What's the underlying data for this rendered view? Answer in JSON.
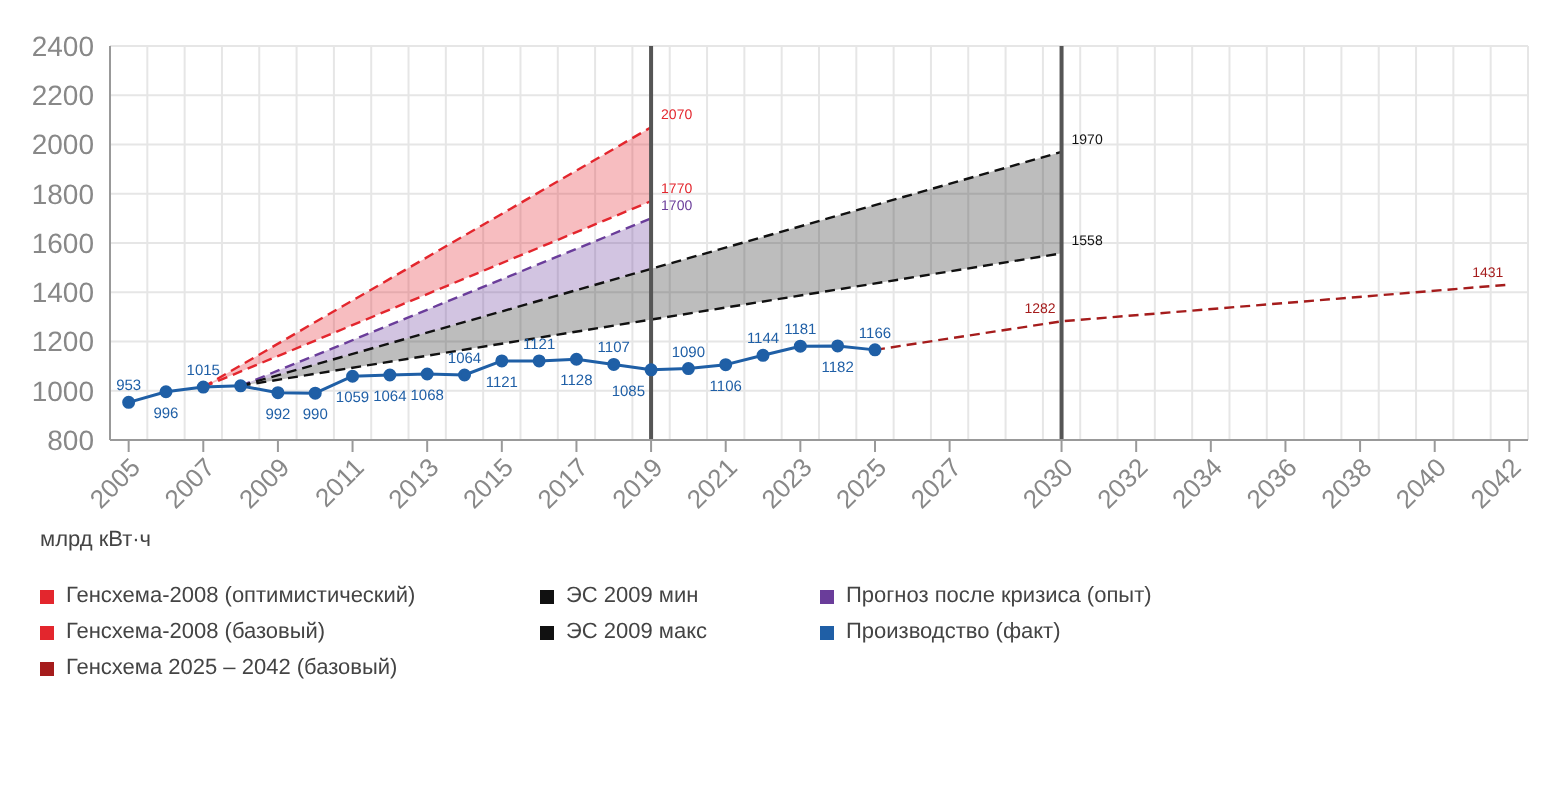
{
  "chart_data": {
    "type": "line",
    "ylabel": "млрд кВт·ч",
    "xlim": [
      2004.5,
      2042.5
    ],
    "xticks": [
      2005,
      2007,
      2009,
      2011,
      2013,
      2015,
      2017,
      2019,
      2021,
      2023,
      2025,
      2027,
      2030,
      2032,
      2034,
      2036,
      2038,
      2040,
      2042
    ],
    "ylim": [
      800,
      2400
    ],
    "yticks": [
      800,
      1000,
      1200,
      1400,
      1600,
      1800,
      2000,
      2200,
      2400
    ],
    "grid": true,
    "legend": "bottom",
    "ref_lines": [
      {
        "axis": "x",
        "value": 2019,
        "color": "#555555"
      },
      {
        "axis": "x",
        "value": 2030,
        "color": "#555555"
      }
    ],
    "series": [
      {
        "name": "Генсхема-2008 (оптимистический)",
        "color": "#e3262d",
        "line_style": "dashed",
        "marker": "none",
        "x": [
          2007,
          2019
        ],
        "values": [
          1015,
          2070
        ],
        "lower": [
          1015,
          1770
        ],
        "upper": [
          1015,
          2070
        ],
        "value_labels": [
          null,
          "2070"
        ]
      },
      {
        "name": "ЭС 2009 мин",
        "color": "#111111",
        "line_style": "dashed",
        "marker": "none",
        "x": [
          2008,
          2030
        ],
        "values": [
          1020,
          1558
        ],
        "value_labels": [
          null,
          "1558"
        ]
      },
      {
        "name": "Прогноз после кризиса (опыт)",
        "color": "#6a3d9a",
        "line_style": "dashed",
        "marker": "none",
        "x": [
          2008,
          2019
        ],
        "values": [
          1020,
          1700
        ],
        "lower": [
          1020,
          1495
        ],
        "upper": [
          1020,
          1700
        ],
        "value_labels": [
          null,
          "1700"
        ]
      },
      {
        "name": "Генсхема-2008 (базовый)",
        "color": "#e3262d",
        "line_style": "dashed",
        "marker": "none",
        "x": [
          2007,
          2019
        ],
        "values": [
          1015,
          1770
        ],
        "value_labels": [
          null,
          "1770"
        ]
      },
      {
        "name": "ЭС 2009 макс",
        "color": "#111111",
        "line_style": "dashed",
        "marker": "none",
        "x": [
          2008,
          2030
        ],
        "values": [
          1020,
          1970
        ],
        "lower": [
          1020,
          1558
        ],
        "upper": [
          1020,
          1970
        ],
        "value_labels": [
          null,
          "1970"
        ]
      },
      {
        "name": "Производство (факт)",
        "color": "#1f5fa6",
        "line_style": "solid",
        "marker": "circle",
        "x": [
          2005,
          2006,
          2007,
          2008,
          2009,
          2010,
          2011,
          2012,
          2013,
          2014,
          2015,
          2016,
          2017,
          2018,
          2019,
          2020,
          2021,
          2022,
          2023,
          2024,
          2025
        ],
        "values": [
          953,
          996,
          1015,
          1020,
          992,
          990,
          1059,
          1064,
          1068,
          1064,
          1121,
          1121,
          1128,
          1107,
          1085,
          1090,
          1106,
          1144,
          1181,
          1182,
          1166
        ],
        "value_labels": [
          "953",
          "996",
          "1015",
          null,
          "992",
          "990",
          "1059",
          "1064",
          "1068",
          "1064",
          "1121",
          "1121",
          "1128",
          "1107",
          "1085",
          "1090",
          "1106",
          "1144",
          "1181",
          "1182",
          "1166"
        ]
      },
      {
        "name": "Генсхема 2025 – 2042 (базовый)",
        "color": "#a51c1c",
        "line_style": "dashed",
        "marker": "none",
        "x": [
          2025,
          2030,
          2042
        ],
        "values": [
          1166,
          1282,
          1431
        ],
        "value_labels": [
          null,
          "1282",
          "1431"
        ]
      }
    ]
  }
}
